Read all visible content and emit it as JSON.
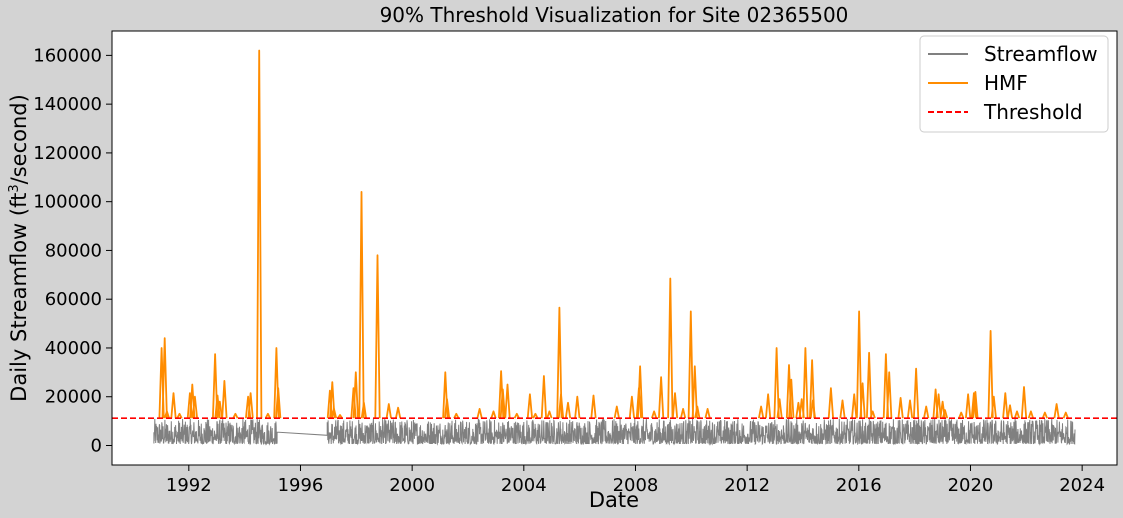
{
  "chart_data": {
    "type": "line",
    "title": "90% Threshold Visualization for Site 02365500",
    "xlabel": "Date",
    "ylabel": "Daily Streamflow (ft³/second)",
    "ylabel_main": "Daily Streamflow (ft",
    "ylabel_sup": "3",
    "ylabel_tail": "/second)",
    "xlim": [
      "1989-04-01",
      "2025-04-01"
    ],
    "ylim": [
      -8000,
      170000
    ],
    "x_ticks": [
      "1992",
      "1996",
      "2000",
      "2004",
      "2008",
      "2012",
      "2016",
      "2020",
      "2024"
    ],
    "y_ticks": [
      0,
      20000,
      40000,
      60000,
      80000,
      100000,
      120000,
      140000,
      160000
    ],
    "grid": false,
    "legend_position": "top-right",
    "threshold": 11200,
    "series": [
      {
        "name": "Streamflow",
        "color": "#808080",
        "date_range": [
          "1990-10-01",
          "2023-09-30"
        ],
        "baseflow_range": [
          600,
          11000
        ],
        "gap_ramp": {
          "x": [
            "1995-03-01",
            "1996-12-15"
          ],
          "y": [
            5500,
            4200
          ]
        }
      },
      {
        "name": "HMF",
        "color": "#ff8c00",
        "peaks": {
          "x": [
            "1991-01-10",
            "1991-02-20",
            "1991-03-20",
            "1991-06-15",
            "1991-09-01",
            "1992-01-15",
            "1992-02-15",
            "1992-03-20",
            "1992-12-10",
            "1993-01-10",
            "1993-02-10",
            "1993-04-10",
            "1993-09-01",
            "1994-02-15",
            "1994-03-20",
            "1994-07-10",
            "1994-11-01",
            "1995-02-20",
            "1995-03-15",
            "1997-01-20",
            "1997-02-20",
            "1997-03-15",
            "1997-06-01",
            "1997-11-25",
            "1997-12-25",
            "1998-03-10",
            "1998-04-10",
            "1998-10-05",
            "1999-03-01",
            "1999-07-01",
            "2001-03-10",
            "2001-04-01",
            "2001-08-01",
            "2002-06-01",
            "2002-12-01",
            "2003-03-10",
            "2003-04-01",
            "2003-06-01",
            "2003-10-01",
            "2004-03-20",
            "2004-06-01",
            "2004-09-20",
            "2004-12-01",
            "2005-04-10",
            "2005-05-01",
            "2005-08-01",
            "2005-12-01",
            "2006-07-01",
            "2007-05-01",
            "2007-11-15",
            "2008-02-15",
            "2008-03-01",
            "2008-09-01",
            "2008-12-01",
            "2009-04-01",
            "2009-06-01",
            "2009-09-15",
            "2009-12-25",
            "2010-02-15",
            "2010-03-20",
            "2010-08-01",
            "2012-07-01",
            "2012-10-01",
            "2013-01-20",
            "2013-03-01",
            "2013-07-01",
            "2013-08-01",
            "2013-11-01",
            "2013-12-15",
            "2014-02-01",
            "2014-04-30",
            "2014-05-10",
            "2015-01-01",
            "2015-06-01",
            "2015-11-01",
            "2016-01-05",
            "2016-02-20",
            "2016-05-15",
            "2016-07-01",
            "2016-12-20",
            "2017-02-01",
            "2017-07-01",
            "2017-11-01",
            "2018-01-20",
            "2018-06-01",
            "2018-10-01",
            "2018-11-10",
            "2019-01-01",
            "2019-02-01",
            "2019-09-01",
            "2019-12-01",
            "2020-02-15",
            "2020-03-05",
            "2020-09-20",
            "2020-11-01",
            "2021-04-01",
            "2021-06-01",
            "2021-09-01",
            "2021-12-01",
            "2022-03-01",
            "2022-09-01",
            "2023-02-01",
            "2023-06-01"
          ],
          "y": [
            40000,
            44000,
            14000,
            21500,
            13000,
            21500,
            25000,
            20000,
            37500,
            20500,
            18000,
            26500,
            13000,
            20000,
            21500,
            162000,
            13000,
            40000,
            23500,
            22500,
            26000,
            15000,
            12500,
            23500,
            30000,
            104000,
            17500,
            78000,
            17000,
            15500,
            30000,
            19000,
            13000,
            15000,
            14000,
            30500,
            23000,
            25000,
            13000,
            21000,
            13000,
            28500,
            14000,
            56500,
            21000,
            17500,
            20000,
            20500,
            16000,
            20000,
            23500,
            32500,
            14000,
            28000,
            68500,
            21500,
            15000,
            55000,
            32500,
            16000,
            15000,
            16000,
            21000,
            40000,
            19000,
            33000,
            27000,
            17500,
            19000,
            40000,
            35000,
            18500,
            23500,
            18500,
            21000,
            55000,
            25500,
            38000,
            14000,
            37500,
            30000,
            19500,
            18500,
            31500,
            16000,
            23000,
            21000,
            18000,
            14500,
            13500,
            21000,
            21500,
            22000,
            47000,
            20000,
            21500,
            16500,
            14000,
            24000,
            14000,
            13500,
            17000,
            13500
          ]
        }
      },
      {
        "name": "Threshold",
        "color": "#ff0000",
        "value": 11200
      }
    ]
  }
}
